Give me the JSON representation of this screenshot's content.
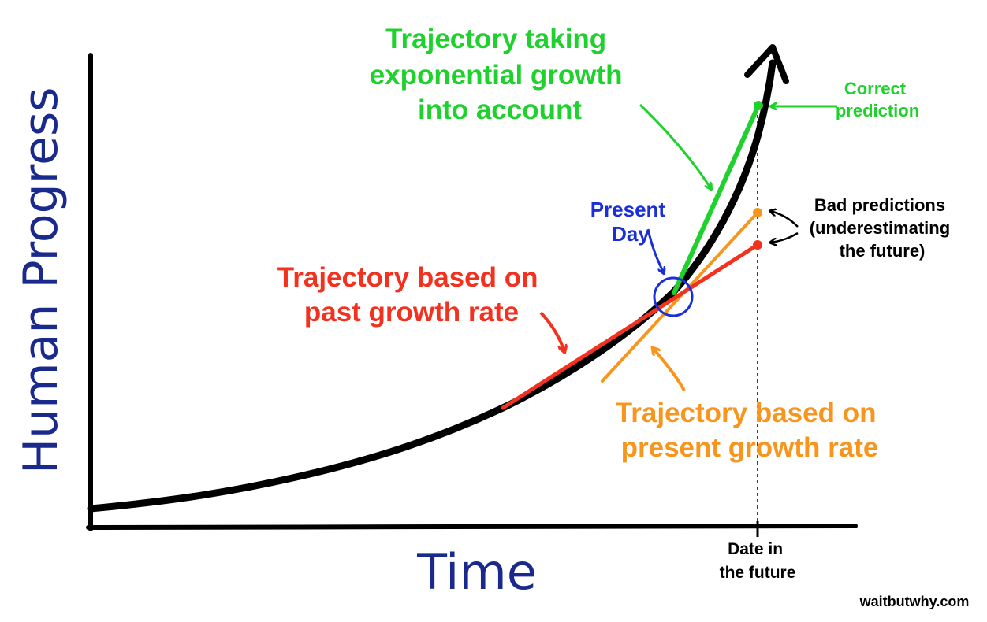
{
  "axes": {
    "y_label": "Human Progress",
    "x_label": "Time",
    "x_marker_label": [
      "Date in",
      "the future"
    ]
  },
  "annotations": {
    "exponential": [
      "Trajectory taking",
      "exponential growth",
      "into account"
    ],
    "correct": [
      "Correct",
      "prediction"
    ],
    "bad": [
      "Bad predictions",
      "(underestimating",
      "the future)"
    ],
    "present_day": [
      "Present",
      "Day"
    ],
    "past_rate": [
      "Trajectory based on",
      "past growth rate"
    ],
    "present_rate": [
      "Trajectory based on",
      "present growth rate"
    ]
  },
  "credit": "waitbutwhy.com",
  "colors": {
    "green": "#1fd12c",
    "red": "#f2311f",
    "orange": "#f7951d",
    "blue": "#1a2fd6",
    "navy": "#1a2a8c",
    "black": "#000000"
  }
}
